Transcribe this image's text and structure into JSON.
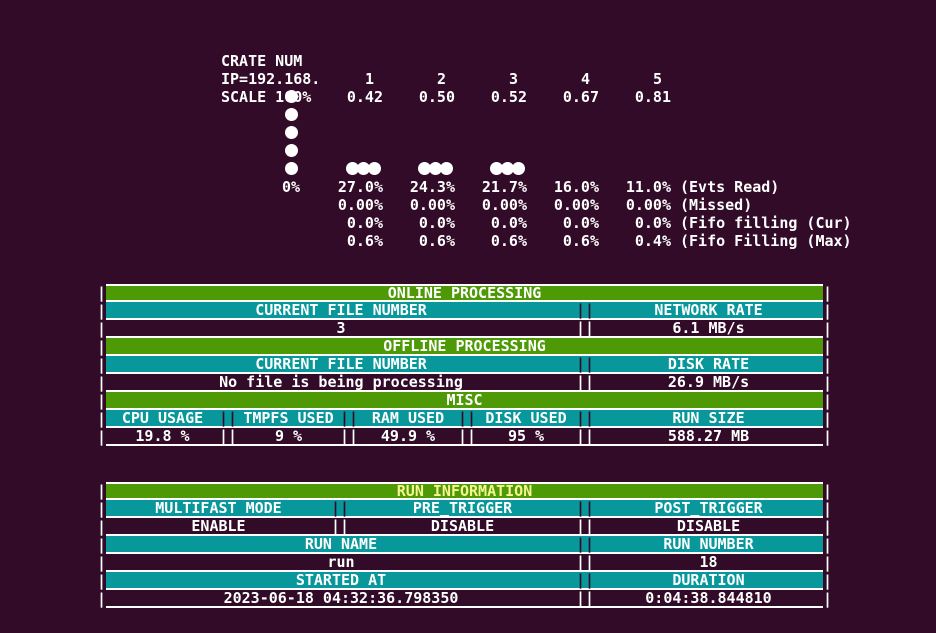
{
  "colors": {
    "background": "#310b27",
    "green": "#4e9a06",
    "teal": "#08979a",
    "white": "#ffffff",
    "title_yellow": "#f6f493"
  },
  "chrome": {
    "pipe": "|",
    "sep": "||"
  },
  "monitor": {
    "crate_label": "CRATE NUM",
    "crate_numbers": [
      "1",
      "2",
      "3",
      "4",
      "5"
    ],
    "ip_label": "IP=192.168.",
    "ip_values": [
      "0.42",
      "0.50",
      "0.52",
      "0.67",
      "0.81"
    ],
    "scale_label": "SCALE 100%",
    "stat_rows": [
      {
        "scale": "0%",
        "values": [
          "27.0%",
          "24.3%",
          "21.7%",
          "16.0%",
          "11.0%"
        ],
        "label": "(Evts Read)"
      },
      {
        "scale": "",
        "values": [
          "0.00%",
          "0.00%",
          "0.00%",
          "0.00%",
          "0.00%"
        ],
        "label": "(Missed)"
      },
      {
        "scale": "",
        "values": [
          "0.0%",
          "0.0%",
          "0.0%",
          "0.0%",
          "0.0%"
        ],
        "label": "(Fifo filling (Cur)"
      },
      {
        "scale": "",
        "values": [
          "0.6%",
          "0.6%",
          "0.6%",
          "0.6%",
          "0.4%"
        ],
        "label": "(Fifo Filling (Max)"
      }
    ]
  },
  "chart_data": {
    "type": "bar",
    "categories": [
      "1",
      "2",
      "3",
      "4",
      "5"
    ],
    "series": [
      {
        "name": "Evts Read",
        "values": [
          27.0,
          24.3,
          21.7,
          16.0,
          11.0
        ]
      },
      {
        "name": "Missed",
        "values": [
          0.0,
          0.0,
          0.0,
          0.0,
          0.0
        ]
      },
      {
        "name": "Fifo filling (Cur)",
        "values": [
          0.0,
          0.0,
          0.0,
          0.0,
          0.0
        ]
      },
      {
        "name": "Fifo Filling (Max)",
        "values": [
          0.6,
          0.6,
          0.6,
          0.6,
          0.4
        ]
      }
    ],
    "xlabel": "CRATE NUM",
    "ylabel": "",
    "ylim": [
      0,
      100
    ],
    "scale_label": "SCALE 100%",
    "axis_zero_label": "0%",
    "dots": {
      "scale_dots": 5,
      "bar_dot_rows": [
        1,
        1,
        1,
        0,
        0
      ]
    }
  },
  "tables": [
    {
      "name": "processing-status",
      "rows": [
        {
          "kind": "title",
          "text": "ONLINE PROCESSING",
          "color": "white"
        },
        {
          "kind": "cols2",
          "tone": "teal",
          "cells": [
            "CURRENT FILE NUMBER",
            "NETWORK RATE"
          ]
        },
        {
          "kind": "cols2",
          "tone": "dark",
          "cells": [
            "3",
            "6.1 MB/s"
          ]
        },
        {
          "kind": "title",
          "text": "OFFLINE PROCESSING",
          "color": "white"
        },
        {
          "kind": "cols2",
          "tone": "teal",
          "cells": [
            "CURRENT FILE NUMBER",
            "DISK RATE"
          ]
        },
        {
          "kind": "cols2",
          "tone": "dark",
          "cells": [
            "No file is being processing",
            "26.9 MB/s"
          ]
        },
        {
          "kind": "title",
          "text": "MISC",
          "color": "white"
        },
        {
          "kind": "cols5",
          "tone": "teal",
          "cells": [
            "CPU USAGE",
            "TMPFS USED",
            "RAM USED",
            "DISK USED",
            "RUN SIZE"
          ]
        },
        {
          "kind": "cols5",
          "tone": "dark",
          "cells": [
            "19.8 %",
            "9 %",
            "49.9 %",
            "95 %",
            "588.27 MB"
          ]
        }
      ]
    },
    {
      "name": "run-information",
      "rows": [
        {
          "kind": "title",
          "text": "RUN INFORMATION",
          "color": "title_yellow"
        },
        {
          "kind": "cols3",
          "tone": "teal",
          "cells": [
            "MULTIFAST MODE",
            "PRE_TRIGGER",
            "POST_TRIGGER"
          ]
        },
        {
          "kind": "cols3",
          "tone": "dark",
          "cells": [
            "ENABLE",
            "DISABLE",
            "DISABLE"
          ]
        },
        {
          "kind": "cols2",
          "tone": "teal",
          "cells": [
            "RUN NAME",
            "RUN NUMBER"
          ]
        },
        {
          "kind": "cols2",
          "tone": "dark",
          "cells": [
            "run",
            "18"
          ]
        },
        {
          "kind": "cols2",
          "tone": "teal",
          "cells": [
            "STARTED AT",
            "DURATION"
          ]
        },
        {
          "kind": "cols2",
          "tone": "dark",
          "cells": [
            "2023-06-18 04:32:36.798350",
            "0:04:38.844810"
          ]
        }
      ]
    }
  ]
}
